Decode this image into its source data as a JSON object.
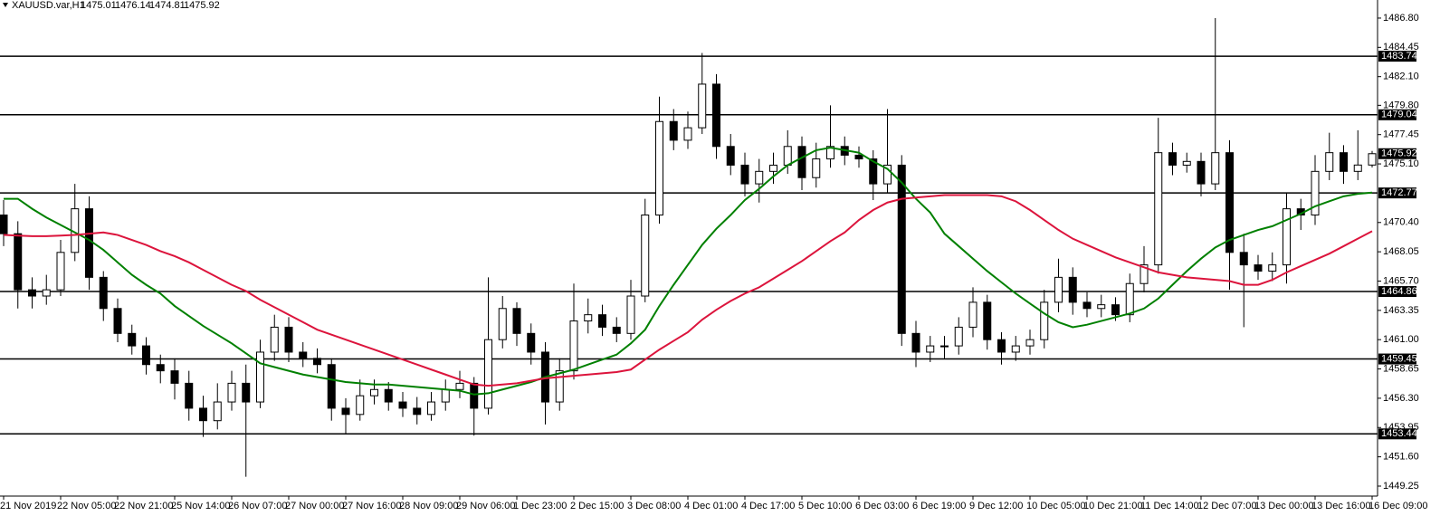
{
  "chart_data": {
    "type": "candlestick",
    "title": "XAUUSD.var,H1",
    "categories": [
      "21 Nov 2019",
      null,
      null,
      null,
      "22 Nov 05:00",
      null,
      null,
      null,
      "22 Nov 21:00",
      null,
      null,
      null,
      "25 Nov 14:00",
      null,
      null,
      null,
      "26 Nov 07:00",
      null,
      null,
      null,
      "27 Nov 00:00",
      null,
      null,
      null,
      "27 Nov 16:00",
      null,
      null,
      null,
      "28 Nov 09:00",
      null,
      null,
      null,
      "29 Nov 06:00",
      null,
      null,
      null,
      "1 Dec 23:00",
      null,
      null,
      null,
      "2 Dec 15:00",
      null,
      null,
      null,
      "3 Dec 08:00",
      null,
      null,
      null,
      "4 Dec 01:00",
      null,
      null,
      null,
      "4 Dec 17:00",
      null,
      null,
      null,
      "5 Dec 10:00",
      null,
      null,
      null,
      "6 Dec 03:00",
      null,
      null,
      null,
      "6 Dec 19:00",
      null,
      null,
      null,
      "9 Dec 12:00",
      null,
      null,
      null,
      "10 Dec 05:00",
      null,
      null,
      null,
      "10 Dec 21:00",
      null,
      null,
      null,
      "11 Dec 14:00",
      null,
      null,
      null,
      "12 Dec 07:00",
      null,
      null,
      null,
      "13 Dec 00:00",
      null,
      null,
      null,
      "13 Dec 16:00",
      null,
      null,
      null,
      "16 Dec 09:00"
    ],
    "open": [
      1471,
      1469.5,
      1465,
      1464.5,
      1465,
      1468,
      1471.5,
      1466,
      1463.5,
      1461.5,
      1460.5,
      1459,
      1458.5,
      1457.5,
      1455.5,
      1454.5,
      1456,
      1457.5,
      1456,
      1460,
      1462,
      1460,
      1459.5,
      1459,
      1455.5,
      1455,
      1456.5,
      1457,
      1456,
      1455.5,
      1455,
      1456,
      1457,
      1457.5,
      1455.5,
      1461,
      1463.5,
      1461.5,
      1460,
      1456,
      1458.5,
      1462.5,
      1463,
      1462,
      1461.5,
      1464.5,
      1471,
      1478.5,
      1477,
      1478,
      1481.5,
      1476.5,
      1475,
      1473.5,
      1474.5,
      1475,
      1476.5,
      1474,
      1475.5,
      1476.5,
      1475.8,
      1475.5,
      1473.5,
      1475,
      1461.5,
      1460,
      1460.5,
      1460.5,
      1462,
      1464,
      1461,
      1460,
      1460.5,
      1461,
      1464,
      1466,
      1464,
      1463.5,
      1463.8,
      1463,
      1465.5,
      1467,
      1476,
      1475,
      1475.3,
      1473.5,
      1476,
      1468,
      1467,
      1466.5,
      1467,
      1471.5,
      1471,
      1474.5,
      1476,
      1474.5,
      1475.01
    ],
    "high": [
      1472.2,
      1470.5,
      1466,
      1466.2,
      1469,
      1473.5,
      1472.5,
      1466.5,
      1464.3,
      1462.2,
      1461.2,
      1459.8,
      1459.5,
      1458.5,
      1456.5,
      1457.5,
      1458.5,
      1459,
      1461,
      1463,
      1462.8,
      1460.8,
      1460.3,
      1459.5,
      1456.3,
      1457.8,
      1457.8,
      1457.6,
      1456.8,
      1456.4,
      1456.8,
      1457.8,
      1458.5,
      1458,
      1466,
      1464.5,
      1464,
      1462.3,
      1460.8,
      1459.5,
      1465.5,
      1464.3,
      1463.8,
      1462.8,
      1465.8,
      1472.3,
      1480.5,
      1479.5,
      1479.3,
      1484,
      1482.3,
      1477.5,
      1476,
      1475.5,
      1476,
      1477.8,
      1477.3,
      1476.8,
      1479.8,
      1477.3,
      1476.5,
      1476.2,
      1479.5,
      1475.8,
      1462.5,
      1461.3,
      1461.3,
      1462.8,
      1465.2,
      1464.6,
      1461.6,
      1461.3,
      1461.8,
      1465,
      1467.5,
      1466.8,
      1464.8,
      1464.6,
      1464.4,
      1466.3,
      1468.5,
      1478.8,
      1476.8,
      1476,
      1476,
      1486.8,
      1477,
      1469.5,
      1467.8,
      1468,
      1472.8,
      1472.3,
      1475.8,
      1477.6,
      1476.6,
      1477.8,
      1476.14
    ],
    "low": [
      1468.5,
      1463.5,
      1463.5,
      1463.8,
      1464.5,
      1467.3,
      1465,
      1462.5,
      1460.8,
      1459.8,
      1458.2,
      1457.5,
      1456.2,
      1454.5,
      1453.2,
      1453.8,
      1455.3,
      1450,
      1455.5,
      1459.3,
      1459.2,
      1458.8,
      1458.3,
      1454.5,
      1453.5,
      1454.5,
      1455.8,
      1455.3,
      1454.8,
      1454.2,
      1454.5,
      1455.3,
      1456.3,
      1453.3,
      1455,
      1460.3,
      1460.5,
      1459,
      1454.2,
      1455.3,
      1457.8,
      1461.5,
      1461.3,
      1460.8,
      1461,
      1464,
      1470.3,
      1476.2,
      1476.3,
      1477.5,
      1475.5,
      1474.2,
      1472.5,
      1472,
      1473.5,
      1474.3,
      1473,
      1473.2,
      1474.8,
      1475,
      1474.8,
      1472.2,
      1472.8,
      1460.5,
      1458.8,
      1459.2,
      1459.5,
      1459.8,
      1461.2,
      1460.2,
      1459,
      1459.3,
      1459.8,
      1460.3,
      1463.2,
      1463,
      1462.8,
      1462.8,
      1462.5,
      1462.4,
      1464.8,
      1466.3,
      1474.2,
      1474.4,
      1472.5,
      1473,
      1465,
      1462,
      1465.8,
      1465.7,
      1465.5,
      1469.8,
      1470.2,
      1473.8,
      1473.5,
      1473.8,
      1474.81
    ],
    "close": [
      1469.5,
      1465,
      1464.5,
      1465,
      1468,
      1471.5,
      1466,
      1463.5,
      1461.5,
      1460.5,
      1459,
      1458.5,
      1457.5,
      1455.5,
      1454.5,
      1456,
      1457.5,
      1456,
      1460,
      1462,
      1460,
      1459.5,
      1459,
      1455.5,
      1455,
      1456.5,
      1457,
      1456,
      1455.5,
      1455,
      1456,
      1457,
      1457.5,
      1455.5,
      1461,
      1463.5,
      1461.5,
      1460,
      1456,
      1458.5,
      1462.5,
      1463,
      1462,
      1461.5,
      1464.5,
      1471,
      1478.5,
      1477,
      1478,
      1481.5,
      1476.5,
      1475,
      1473.5,
      1474.5,
      1475,
      1476.5,
      1474,
      1475.5,
      1476.5,
      1475.8,
      1475.5,
      1473.5,
      1475,
      1461.5,
      1460,
      1460.5,
      1460.5,
      1462,
      1464,
      1461,
      1460,
      1460.5,
      1461,
      1464,
      1466,
      1464,
      1463.5,
      1463.8,
      1463,
      1465.5,
      1467,
      1476,
      1475,
      1475.3,
      1473.5,
      1476,
      1468,
      1467,
      1466.5,
      1467,
      1471.5,
      1471,
      1474.5,
      1476,
      1474.5,
      1475.01,
      1475.92
    ],
    "up_color": "#ffffff",
    "down_color": "#000000",
    "lines": [
      {
        "color": "#008000",
        "values": [
          1472.3,
          1472.3,
          1471.5,
          1470.8,
          1470.2,
          1469.6,
          1469,
          1468.2,
          1467.2,
          1466.2,
          1465.4,
          1464.7,
          1463.7,
          1462.9,
          1462.1,
          1461.4,
          1460.7,
          1459.9,
          1459.1,
          1458.8,
          1458.5,
          1458.2,
          1458,
          1457.8,
          1457.6,
          1457.5,
          1457.4,
          1457.4,
          1457.3,
          1457.2,
          1457.1,
          1457,
          1456.9,
          1456.6,
          1456.7,
          1457,
          1457.3,
          1457.6,
          1458,
          1458.3,
          1458.6,
          1459,
          1459.4,
          1459.8,
          1460.7,
          1461.8,
          1463.7,
          1465.4,
          1467,
          1468.6,
          1469.9,
          1471,
          1472.2,
          1473.1,
          1474.1,
          1475,
          1475.6,
          1476.2,
          1476.4,
          1476.2,
          1476,
          1475.3,
          1474.7,
          1473.6,
          1472.3,
          1471.2,
          1469.5,
          1468.5,
          1467.5,
          1466.5,
          1465.6,
          1464.7,
          1463.9,
          1463.1,
          1462.4,
          1462,
          1462.2,
          1462.5,
          1462.8,
          1463.1,
          1463.5,
          1464.3,
          1465.4,
          1466.5,
          1467.5,
          1468.4,
          1469,
          1469.4,
          1469.8,
          1470.1,
          1470.6,
          1471.1,
          1471.7,
          1472.1,
          1472.5,
          1472.7,
          1472.8
        ]
      },
      {
        "color": "#dc143c",
        "values": [
          1469.4,
          1469.35,
          1469.3,
          1469.3,
          1469.35,
          1469.4,
          1469.5,
          1469.6,
          1469.4,
          1469,
          1468.6,
          1468.1,
          1467.7,
          1467.2,
          1466.6,
          1466,
          1465.4,
          1464.9,
          1464.2,
          1463.6,
          1463,
          1462.4,
          1461.8,
          1461.4,
          1461,
          1460.6,
          1460.2,
          1459.8,
          1459.4,
          1459,
          1458.6,
          1458.2,
          1457.8,
          1457.4,
          1457.3,
          1457.4,
          1457.5,
          1457.7,
          1457.9,
          1458,
          1458.1,
          1458.2,
          1458.3,
          1458.4,
          1458.6,
          1459.4,
          1460.2,
          1460.9,
          1461.6,
          1462.6,
          1463.4,
          1464.1,
          1464.7,
          1465.2,
          1465.9,
          1466.6,
          1467.3,
          1468.1,
          1468.9,
          1469.6,
          1470.6,
          1471.4,
          1472,
          1472.3,
          1472.4,
          1472.5,
          1472.6,
          1472.6,
          1472.6,
          1472.6,
          1472.5,
          1472.1,
          1471.4,
          1470.6,
          1469.8,
          1469.1,
          1468.6,
          1468.1,
          1467.6,
          1467.2,
          1466.8,
          1466.4,
          1466.2,
          1466,
          1465.9,
          1465.8,
          1465.7,
          1465.4,
          1465.4,
          1465.8,
          1466.4,
          1466.9,
          1467.4,
          1467.9,
          1468.5,
          1469.1,
          1469.7
        ]
      }
    ],
    "levels": [
      1483.74,
      1479.04,
      1472.77,
      1464.86,
      1459.45,
      1453.44
    ],
    "ylim": [
      1448.45,
      1488.25
    ],
    "yticks": [
      {
        "value": 1486.8,
        "label": "1486.80"
      },
      1484.45,
      {
        "value": 1482.1,
        "label": "1482.10"
      },
      {
        "value": 1479.8,
        "label": "1479.80"
      },
      1477.45,
      {
        "value": 1475.1,
        "label": "1475.10"
      },
      {
        "value": 1470.4,
        "label": "1470.40"
      },
      1468.05,
      {
        "value": 1465.7,
        "label": "1465.70"
      },
      1463.35,
      {
        "value": 1461,
        "label": "1461.00"
      },
      1458.65,
      {
        "value": 1456.3,
        "label": "1456.30"
      },
      1453.95,
      {
        "value": 1451.6,
        "label": "1451.60"
      },
      1449.25
    ]
  }
}
